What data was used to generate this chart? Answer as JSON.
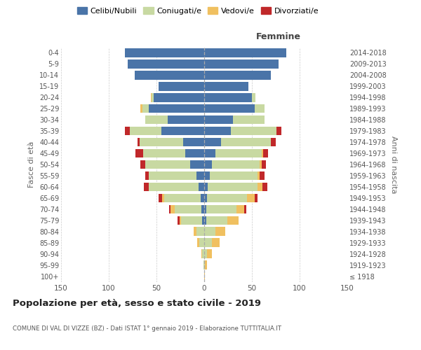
{
  "age_groups": [
    "100+",
    "95-99",
    "90-94",
    "85-89",
    "80-84",
    "75-79",
    "70-74",
    "65-69",
    "60-64",
    "55-59",
    "50-54",
    "45-49",
    "40-44",
    "35-39",
    "30-34",
    "25-29",
    "20-24",
    "15-19",
    "10-14",
    "5-9",
    "0-4"
  ],
  "birth_years": [
    "≤ 1918",
    "1919-1923",
    "1924-1928",
    "1929-1933",
    "1934-1938",
    "1939-1943",
    "1944-1948",
    "1949-1953",
    "1954-1958",
    "1959-1963",
    "1964-1968",
    "1969-1973",
    "1974-1978",
    "1979-1983",
    "1984-1988",
    "1989-1993",
    "1994-1998",
    "1999-2003",
    "2004-2008",
    "2009-2013",
    "2014-2018"
  ],
  "males": {
    "celibi": [
      0,
      0,
      0,
      0,
      0,
      2,
      3,
      4,
      6,
      8,
      15,
      20,
      22,
      45,
      38,
      58,
      53,
      48,
      73,
      80,
      83
    ],
    "coniugati": [
      0,
      1,
      2,
      5,
      8,
      22,
      28,
      38,
      52,
      50,
      47,
      44,
      46,
      33,
      24,
      7,
      2,
      0,
      0,
      0,
      0
    ],
    "vedovi": [
      0,
      0,
      1,
      2,
      3,
      2,
      4,
      2,
      0,
      0,
      0,
      0,
      0,
      0,
      0,
      2,
      1,
      0,
      0,
      0,
      0
    ],
    "divorziati": [
      0,
      0,
      0,
      0,
      0,
      2,
      2,
      4,
      5,
      4,
      5,
      8,
      2,
      5,
      0,
      0,
      0,
      0,
      0,
      0,
      0
    ]
  },
  "females": {
    "nubili": [
      0,
      0,
      0,
      0,
      0,
      2,
      2,
      3,
      4,
      6,
      8,
      12,
      18,
      28,
      30,
      53,
      50,
      46,
      70,
      78,
      86
    ],
    "coniugate": [
      0,
      1,
      3,
      8,
      12,
      22,
      32,
      42,
      52,
      50,
      50,
      48,
      52,
      48,
      33,
      10,
      4,
      0,
      0,
      0,
      0
    ],
    "vedove": [
      1,
      2,
      5,
      8,
      10,
      12,
      8,
      8,
      5,
      2,
      2,
      2,
      0,
      0,
      0,
      0,
      0,
      0,
      0,
      0,
      0
    ],
    "divorziate": [
      0,
      0,
      0,
      0,
      0,
      0,
      2,
      3,
      5,
      5,
      5,
      5,
      5,
      5,
      0,
      0,
      0,
      0,
      0,
      0,
      0
    ]
  },
  "colors": {
    "celibi_nubili": "#4a74a8",
    "coniugati": "#c8d9a2",
    "vedovi": "#f0c060",
    "divorziati": "#c0282a"
  },
  "xlim": 150,
  "title": "Popolazione per età, sesso e stato civile - 2019",
  "subtitle": "COMUNE DI VAL DI VIZZE (BZ) - Dati ISTAT 1° gennaio 2019 - Elaborazione TUTTITALIA.IT",
  "ylabel_left": "Fasce di età",
  "ylabel_right": "Anni di nascita",
  "xlabel_femmine": "Femmine",
  "legend_labels": [
    "Celibi/Nubili",
    "Coniugati/e",
    "Vedovi/e",
    "Divorziati/e"
  ]
}
